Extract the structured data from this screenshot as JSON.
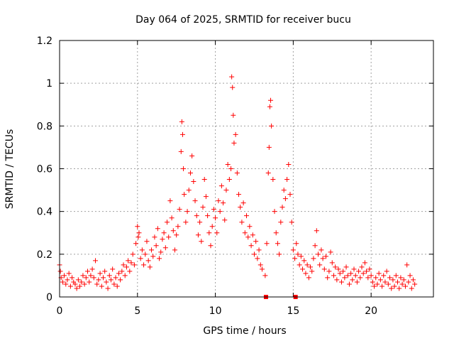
{
  "chart_data": {
    "type": "scatter",
    "title": "Day 064 of 2025, SRMTID for receiver bucu",
    "xlabel": "GPS time / hours",
    "ylabel": "SRMTID / TECUs",
    "xlim": [
      0,
      24
    ],
    "ylim": [
      0,
      1.2
    ],
    "xticks": [
      0,
      5,
      10,
      15,
      20
    ],
    "xtick_labels": [
      "0",
      "5",
      "10",
      "15",
      "20"
    ],
    "yticks": [
      0,
      0.2,
      0.4,
      0.6,
      0.8,
      1.0,
      1.2
    ],
    "ytick_labels": [
      "0",
      "0.2",
      "0.4",
      "0.6",
      "0.8",
      "1",
      "1.2"
    ],
    "grid": true,
    "marker": "plus",
    "color": "#ff0000",
    "series": [
      {
        "name": "SRMTID",
        "points": [
          [
            0.0,
            0.15
          ],
          [
            0.05,
            0.12
          ],
          [
            0.1,
            0.09
          ],
          [
            0.2,
            0.07
          ],
          [
            0.3,
            0.1
          ],
          [
            0.4,
            0.06
          ],
          [
            0.5,
            0.08
          ],
          [
            0.6,
            0.11
          ],
          [
            0.7,
            0.05
          ],
          [
            0.8,
            0.09
          ],
          [
            0.9,
            0.07
          ],
          [
            1.0,
            0.06
          ],
          [
            1.1,
            0.04
          ],
          [
            1.2,
            0.08
          ],
          [
            1.3,
            0.05
          ],
          [
            1.4,
            0.07
          ],
          [
            1.5,
            0.1
          ],
          [
            1.6,
            0.06
          ],
          [
            1.7,
            0.09
          ],
          [
            1.8,
            0.12
          ],
          [
            1.9,
            0.07
          ],
          [
            2.0,
            0.1
          ],
          [
            2.1,
            0.13
          ],
          [
            2.2,
            0.09
          ],
          [
            2.3,
            0.17
          ],
          [
            2.4,
            0.06
          ],
          [
            2.5,
            0.08
          ],
          [
            2.6,
            0.11
          ],
          [
            2.7,
            0.05
          ],
          [
            2.8,
            0.09
          ],
          [
            2.9,
            0.12
          ],
          [
            3.0,
            0.07
          ],
          [
            3.1,
            0.04
          ],
          [
            3.2,
            0.1
          ],
          [
            3.3,
            0.08
          ],
          [
            3.4,
            0.13
          ],
          [
            3.5,
            0.06
          ],
          [
            3.6,
            0.09
          ],
          [
            3.7,
            0.05
          ],
          [
            3.8,
            0.11
          ],
          [
            3.9,
            0.08
          ],
          [
            4.0,
            0.12
          ],
          [
            4.1,
            0.15
          ],
          [
            4.2,
            0.1
          ],
          [
            4.3,
            0.14
          ],
          [
            4.4,
            0.17
          ],
          [
            4.5,
            0.12
          ],
          [
            4.6,
            0.16
          ],
          [
            4.7,
            0.2
          ],
          [
            4.8,
            0.15
          ],
          [
            4.9,
            0.25
          ],
          [
            5.0,
            0.33
          ],
          [
            5.05,
            0.28
          ],
          [
            5.1,
            0.3
          ],
          [
            5.2,
            0.18
          ],
          [
            5.3,
            0.22
          ],
          [
            5.4,
            0.15
          ],
          [
            5.5,
            0.2
          ],
          [
            5.6,
            0.26
          ],
          [
            5.7,
            0.17
          ],
          [
            5.8,
            0.14
          ],
          [
            5.9,
            0.22
          ],
          [
            6.0,
            0.19
          ],
          [
            6.1,
            0.28
          ],
          [
            6.2,
            0.24
          ],
          [
            6.3,
            0.32
          ],
          [
            6.4,
            0.18
          ],
          [
            6.5,
            0.21
          ],
          [
            6.6,
            0.27
          ],
          [
            6.7,
            0.3
          ],
          [
            6.8,
            0.23
          ],
          [
            6.9,
            0.35
          ],
          [
            7.0,
            0.28
          ],
          [
            7.1,
            0.45
          ],
          [
            7.2,
            0.37
          ],
          [
            7.3,
            0.31
          ],
          [
            7.4,
            0.22
          ],
          [
            7.5,
            0.29
          ],
          [
            7.6,
            0.33
          ],
          [
            7.7,
            0.41
          ],
          [
            7.8,
            0.68
          ],
          [
            7.85,
            0.82
          ],
          [
            7.9,
            0.76
          ],
          [
            7.95,
            0.6
          ],
          [
            8.0,
            0.48
          ],
          [
            8.1,
            0.35
          ],
          [
            8.2,
            0.4
          ],
          [
            8.3,
            0.5
          ],
          [
            8.4,
            0.58
          ],
          [
            8.5,
            0.66
          ],
          [
            8.6,
            0.54
          ],
          [
            8.7,
            0.45
          ],
          [
            8.8,
            0.38
          ],
          [
            8.9,
            0.29
          ],
          [
            9.0,
            0.35
          ],
          [
            9.1,
            0.26
          ],
          [
            9.2,
            0.42
          ],
          [
            9.3,
            0.55
          ],
          [
            9.4,
            0.47
          ],
          [
            9.5,
            0.38
          ],
          [
            9.6,
            0.3
          ],
          [
            9.7,
            0.24
          ],
          [
            9.8,
            0.33
          ],
          [
            9.9,
            0.41
          ],
          [
            10.0,
            0.37
          ],
          [
            10.1,
            0.3
          ],
          [
            10.2,
            0.45
          ],
          [
            10.3,
            0.4
          ],
          [
            10.4,
            0.52
          ],
          [
            10.5,
            0.44
          ],
          [
            10.6,
            0.36
          ],
          [
            10.7,
            0.5
          ],
          [
            10.8,
            0.62
          ],
          [
            10.9,
            0.55
          ],
          [
            11.0,
            0.6
          ],
          [
            11.05,
            1.03
          ],
          [
            11.1,
            0.98
          ],
          [
            11.15,
            0.85
          ],
          [
            11.2,
            0.72
          ],
          [
            11.3,
            0.76
          ],
          [
            11.4,
            0.58
          ],
          [
            11.5,
            0.48
          ],
          [
            11.6,
            0.42
          ],
          [
            11.7,
            0.35
          ],
          [
            11.8,
            0.44
          ],
          [
            11.9,
            0.3
          ],
          [
            12.0,
            0.38
          ],
          [
            12.1,
            0.28
          ],
          [
            12.2,
            0.33
          ],
          [
            12.3,
            0.24
          ],
          [
            12.4,
            0.29
          ],
          [
            12.5,
            0.2
          ],
          [
            12.6,
            0.26
          ],
          [
            12.7,
            0.18
          ],
          [
            12.8,
            0.22
          ],
          [
            12.9,
            0.15
          ],
          [
            13.0,
            0.13
          ],
          [
            13.2,
            0.1
          ],
          [
            13.3,
            0.25
          ],
          [
            13.4,
            0.58
          ],
          [
            13.45,
            0.7
          ],
          [
            13.5,
            0.89
          ],
          [
            13.55,
            0.92
          ],
          [
            13.6,
            0.8
          ],
          [
            13.7,
            0.55
          ],
          [
            13.8,
            0.4
          ],
          [
            13.9,
            0.3
          ],
          [
            14.0,
            0.25
          ],
          [
            14.1,
            0.2
          ],
          [
            14.2,
            0.35
          ],
          [
            14.3,
            0.42
          ],
          [
            14.4,
            0.5
          ],
          [
            14.5,
            0.46
          ],
          [
            14.6,
            0.55
          ],
          [
            14.7,
            0.62
          ],
          [
            14.8,
            0.48
          ],
          [
            14.9,
            0.35
          ],
          [
            15.0,
            0.22
          ],
          [
            15.1,
            0.18
          ],
          [
            15.2,
            0.25
          ],
          [
            15.3,
            0.2
          ],
          [
            15.4,
            0.15
          ],
          [
            15.5,
            0.19
          ],
          [
            15.6,
            0.13
          ],
          [
            15.7,
            0.17
          ],
          [
            15.8,
            0.11
          ],
          [
            15.9,
            0.15
          ],
          [
            16.0,
            0.09
          ],
          [
            16.1,
            0.14
          ],
          [
            16.2,
            0.12
          ],
          [
            16.3,
            0.18
          ],
          [
            16.4,
            0.24
          ],
          [
            16.5,
            0.31
          ],
          [
            16.6,
            0.2
          ],
          [
            16.7,
            0.15
          ],
          [
            16.8,
            0.22
          ],
          [
            16.9,
            0.18
          ],
          [
            17.0,
            0.13
          ],
          [
            17.1,
            0.19
          ],
          [
            17.2,
            0.09
          ],
          [
            17.3,
            0.12
          ],
          [
            17.4,
            0.21
          ],
          [
            17.5,
            0.16
          ],
          [
            17.6,
            0.1
          ],
          [
            17.7,
            0.14
          ],
          [
            17.8,
            0.08
          ],
          [
            17.9,
            0.13
          ],
          [
            18.0,
            0.11
          ],
          [
            18.1,
            0.07
          ],
          [
            18.2,
            0.12
          ],
          [
            18.3,
            0.09
          ],
          [
            18.4,
            0.14
          ],
          [
            18.5,
            0.1
          ],
          [
            18.6,
            0.06
          ],
          [
            18.7,
            0.11
          ],
          [
            18.8,
            0.08
          ],
          [
            18.9,
            0.13
          ],
          [
            19.0,
            0.1
          ],
          [
            19.1,
            0.07
          ],
          [
            19.2,
            0.12
          ],
          [
            19.3,
            0.09
          ],
          [
            19.4,
            0.14
          ],
          [
            19.5,
            0.11
          ],
          [
            19.6,
            0.16
          ],
          [
            19.7,
            0.12
          ],
          [
            19.8,
            0.09
          ],
          [
            19.9,
            0.13
          ],
          [
            20.0,
            0.1
          ],
          [
            20.1,
            0.07
          ],
          [
            20.2,
            0.05
          ],
          [
            20.3,
            0.09
          ],
          [
            20.4,
            0.06
          ],
          [
            20.5,
            0.11
          ],
          [
            20.6,
            0.08
          ],
          [
            20.7,
            0.05
          ],
          [
            20.8,
            0.1
          ],
          [
            20.9,
            0.07
          ],
          [
            21.0,
            0.12
          ],
          [
            21.1,
            0.06
          ],
          [
            21.2,
            0.09
          ],
          [
            21.3,
            0.04
          ],
          [
            21.4,
            0.08
          ],
          [
            21.5,
            0.05
          ],
          [
            21.6,
            0.1
          ],
          [
            21.7,
            0.07
          ],
          [
            21.8,
            0.04
          ],
          [
            21.9,
            0.09
          ],
          [
            22.0,
            0.06
          ],
          [
            22.1,
            0.08
          ],
          [
            22.2,
            0.05
          ],
          [
            22.3,
            0.15
          ],
          [
            22.4,
            0.07
          ],
          [
            22.5,
            0.1
          ],
          [
            22.6,
            0.04
          ],
          [
            22.7,
            0.08
          ],
          [
            22.8,
            0.06
          ]
        ],
        "markers_square": [
          [
            13.25,
            0.0
          ],
          [
            15.15,
            0.0
          ]
        ]
      }
    ]
  }
}
